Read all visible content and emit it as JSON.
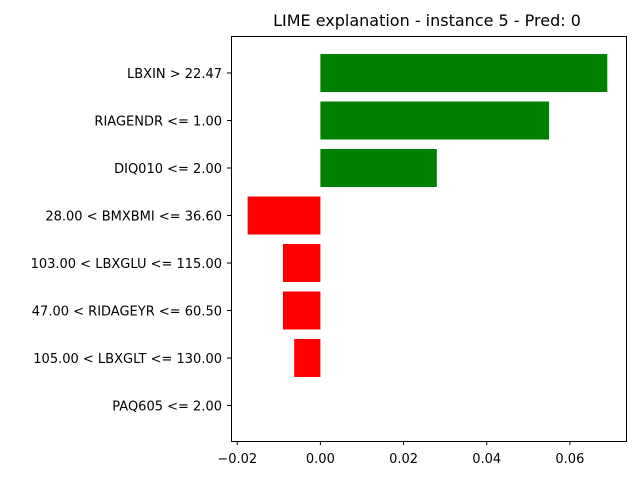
{
  "chart_data": {
    "type": "bar",
    "orientation": "horizontal",
    "title": "LIME explanation - instance 5 - Pred: 0",
    "xlabel": "",
    "ylabel": "",
    "categories": [
      "LBXIN > 22.47",
      "RIAGENDR <= 1.00",
      "DIQ010 <= 2.00",
      "28.00 < BMXBMI <= 36.60",
      "103.00 < LBXGLU <= 115.00",
      "47.00 < RIDAGEYR <= 60.50",
      "105.00 < LBXGLT <= 130.00",
      "PAQ605 <= 2.00"
    ],
    "values": [
      0.069,
      0.055,
      0.028,
      -0.0175,
      -0.009,
      -0.009,
      -0.0063,
      0.0
    ],
    "xlim": [
      -0.0215,
      0.0735
    ],
    "xticks": [
      -0.02,
      0.0,
      0.02,
      0.04,
      0.06
    ],
    "xtick_labels": [
      "−0.02",
      "0.00",
      "0.02",
      "0.04",
      "0.06"
    ],
    "grid": false,
    "colors": {
      "positive": "#008000",
      "negative": "#ff0000"
    }
  }
}
